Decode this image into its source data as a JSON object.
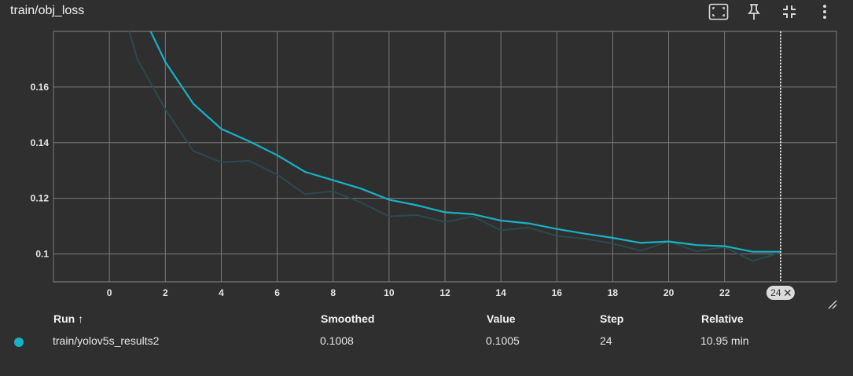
{
  "card": {
    "title": "train/obj_loss"
  },
  "toolbar": {
    "buttons": [
      {
        "name": "fit-domain-button",
        "icon": "fit-to-screen-icon"
      },
      {
        "name": "pin-button",
        "icon": "pin-icon"
      },
      {
        "name": "collapse-button",
        "icon": "collapse-icon"
      },
      {
        "name": "more-menu-button",
        "icon": "more-vert-icon"
      }
    ]
  },
  "colors": {
    "smoothed": "#17b2c7",
    "raw": "#2b4a4f",
    "grid": "#7a7a7a",
    "axis_text": "#e6e6e6",
    "background": "#2f2f2f"
  },
  "chart_data": {
    "type": "line",
    "title": "train/obj_loss",
    "xlabel": "",
    "ylabel": "",
    "xlim": [
      -2,
      26
    ],
    "ylim": [
      0.09,
      0.18
    ],
    "x_ticks": [
      0,
      2,
      4,
      6,
      8,
      10,
      12,
      14,
      16,
      18,
      20,
      22
    ],
    "y_ticks": [
      0.1,
      0.12,
      0.14,
      0.16
    ],
    "y_tick_labels": [
      "0.1",
      "0.12",
      "0.14",
      "0.16"
    ],
    "grid": true,
    "legend": "none",
    "hover_step": 24,
    "hover_label": "24",
    "series": [
      {
        "kind": "raw",
        "x": [
          0,
          1,
          2,
          3,
          4,
          5,
          6,
          7,
          8,
          9,
          10,
          11,
          12,
          13,
          14,
          15,
          16,
          17,
          18,
          19,
          20,
          21,
          22,
          23,
          24
        ],
        "y": [
          0.205,
          0.17,
          0.152,
          0.137,
          0.133,
          0.1335,
          0.1285,
          0.1215,
          0.1225,
          0.1185,
          0.1135,
          0.114,
          0.1115,
          0.1135,
          0.1085,
          0.1095,
          0.1065,
          0.1055,
          0.1038,
          0.1012,
          0.1045,
          0.101,
          0.1025,
          0.0975,
          0.1005
        ]
      },
      {
        "kind": "smoothed",
        "x": [
          0,
          1,
          2,
          3,
          4,
          5,
          6,
          7,
          8,
          9,
          10,
          11,
          12,
          13,
          14,
          15,
          16,
          17,
          18,
          19,
          20,
          21,
          22,
          23,
          24
        ],
        "y": [
          0.215,
          0.19,
          0.169,
          0.154,
          0.145,
          0.1405,
          0.1355,
          0.1295,
          0.1265,
          0.1235,
          0.1195,
          0.1175,
          0.115,
          0.1143,
          0.112,
          0.111,
          0.109,
          0.1073,
          0.1058,
          0.104,
          0.1045,
          0.1032,
          0.1028,
          0.1008,
          0.1008
        ]
      }
    ]
  },
  "table": {
    "headers": {
      "run": "Run ↑",
      "smoothed": "Smoothed",
      "value": "Value",
      "step": "Step",
      "relative": "Relative"
    },
    "rows": [
      {
        "run": "train/yolov5s_results2",
        "smoothed": "0.1008",
        "value": "0.1005",
        "step": "24",
        "relative": "10.95 min",
        "color": "#17b2c7"
      }
    ]
  }
}
